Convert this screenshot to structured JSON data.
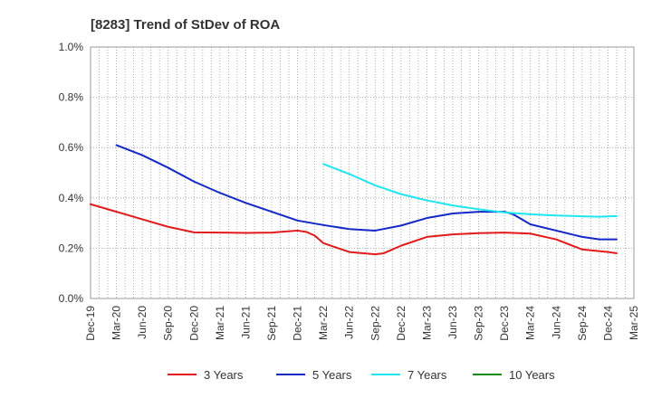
{
  "chart_data": {
    "type": "line",
    "title": "[8283]  Trend of StDev of ROA",
    "xlabel": "",
    "ylabel": "",
    "ylim": [
      0,
      1.0
    ],
    "y_ticks": [
      "0.0%",
      "0.2%",
      "0.4%",
      "0.6%",
      "0.8%",
      "1.0%"
    ],
    "y_tick_values": [
      0,
      0.2,
      0.4,
      0.6,
      0.8,
      1.0
    ],
    "x_ticks": [
      "Dec-19",
      "Mar-20",
      "Jun-20",
      "Sep-20",
      "Dec-20",
      "Mar-21",
      "Jun-21",
      "Sep-21",
      "Dec-21",
      "Mar-22",
      "Jun-22",
      "Sep-22",
      "Dec-22",
      "Mar-23",
      "Jun-23",
      "Sep-23",
      "Dec-23",
      "Mar-24",
      "Jun-24",
      "Sep-24",
      "Dec-24",
      "Mar-25"
    ],
    "grid": true,
    "legend_placement": "bottom",
    "series": [
      {
        "name": "3 Years",
        "color": "#e31a1c",
        "points": [
          [
            "Dec-19",
            0.375
          ],
          [
            "Mar-20",
            0.345
          ],
          [
            "Jun-20",
            0.315
          ],
          [
            "Sep-20",
            0.285
          ],
          [
            "Dec-20",
            0.263
          ],
          [
            "Mar-21",
            0.262
          ],
          [
            "Jun-21",
            0.261
          ],
          [
            "Sep-21",
            0.262
          ],
          [
            "Dec-21",
            0.27
          ],
          [
            "Jan-22",
            0.265
          ],
          [
            "Feb-22",
            0.25
          ],
          [
            "Mar-22",
            0.22
          ],
          [
            "Jun-22",
            0.185
          ],
          [
            "Sep-22",
            0.176
          ],
          [
            "Oct-22",
            0.18
          ],
          [
            "Dec-22",
            0.21
          ],
          [
            "Mar-23",
            0.245
          ],
          [
            "Jun-23",
            0.255
          ],
          [
            "Sep-23",
            0.26
          ],
          [
            "Dec-23",
            0.262
          ],
          [
            "Mar-24",
            0.258
          ],
          [
            "Jun-24",
            0.235
          ],
          [
            "Sep-24",
            0.195
          ],
          [
            "Dec-24",
            0.185
          ],
          [
            "Jan-25",
            0.18
          ]
        ]
      },
      {
        "name": "5 Years",
        "color": "#1428c8",
        "points": [
          [
            "Mar-20",
            0.61
          ],
          [
            "Jun-20",
            0.57
          ],
          [
            "Sep-20",
            0.52
          ],
          [
            "Dec-20",
            0.465
          ],
          [
            "Mar-21",
            0.42
          ],
          [
            "Jun-21",
            0.38
          ],
          [
            "Sep-21",
            0.345
          ],
          [
            "Dec-21",
            0.31
          ],
          [
            "Mar-22",
            0.292
          ],
          [
            "Jun-22",
            0.276
          ],
          [
            "Sep-22",
            0.27
          ],
          [
            "Dec-22",
            0.29
          ],
          [
            "Mar-23",
            0.32
          ],
          [
            "Jun-23",
            0.338
          ],
          [
            "Sep-23",
            0.345
          ],
          [
            "Dec-23",
            0.345
          ],
          [
            "Jan-24",
            0.335
          ],
          [
            "Mar-24",
            0.295
          ],
          [
            "Jun-24",
            0.27
          ],
          [
            "Sep-24",
            0.245
          ],
          [
            "Nov-24",
            0.235
          ],
          [
            "Jan-25",
            0.235
          ]
        ]
      },
      {
        "name": "7 Years",
        "color": "#1ee6f0",
        "points": [
          [
            "Mar-22",
            0.535
          ],
          [
            "Jun-22",
            0.495
          ],
          [
            "Sep-22",
            0.45
          ],
          [
            "Dec-22",
            0.415
          ],
          [
            "Mar-23",
            0.39
          ],
          [
            "Jun-23",
            0.37
          ],
          [
            "Sep-23",
            0.355
          ],
          [
            "Dec-23",
            0.342
          ],
          [
            "Mar-24",
            0.335
          ],
          [
            "Jun-24",
            0.33
          ],
          [
            "Sep-24",
            0.327
          ],
          [
            "Nov-24",
            0.325
          ],
          [
            "Jan-25",
            0.328
          ]
        ]
      },
      {
        "name": "10 Years",
        "color": "#1a8c1a",
        "points": []
      }
    ]
  }
}
